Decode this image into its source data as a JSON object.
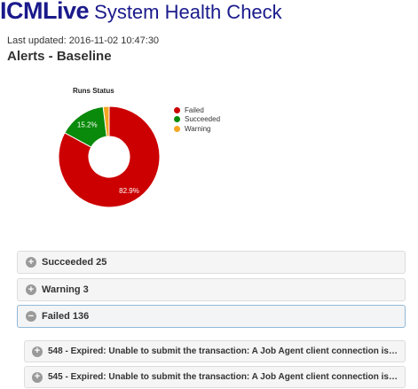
{
  "header": {
    "brand": "ICMLive",
    "subtitle": " System Health Check",
    "last_updated": "Last updated: 2016-11-02 10:47:30",
    "section_title": "Alerts - Baseline"
  },
  "chart_data": {
    "type": "pie",
    "title": "Runs Status",
    "series": [
      {
        "name": "Failed",
        "value": 82.9,
        "label": "82.9%",
        "color": "#cc0000"
      },
      {
        "name": "Succeeded",
        "value": 15.2,
        "label": "15.2%",
        "color": "#0a8a0a"
      },
      {
        "name": "Warning",
        "value": 1.9,
        "label": "",
        "color": "#f5a623"
      }
    ],
    "legend_position": "right",
    "donut": true
  },
  "panels": [
    {
      "label": "Succeeded 25",
      "icon": "plus",
      "state": "collapsed"
    },
    {
      "label": "Warning 3",
      "icon": "plus",
      "state": "collapsed"
    },
    {
      "label": "Failed 136",
      "icon": "minus",
      "state": "expanded"
    }
  ],
  "failed_items": [
    {
      "label": "548 - Expired: Unable to submit the transaction: A Job Agent client connection is…",
      "icon": "plus"
    },
    {
      "label": "545 - Expired: Unable to submit the transaction: A Job Agent client connection is…",
      "icon": "plus"
    }
  ],
  "icons": {
    "plus": "+",
    "minus": "−"
  }
}
